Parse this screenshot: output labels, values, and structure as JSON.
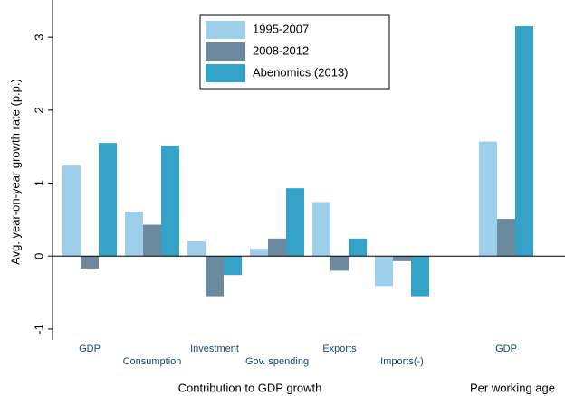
{
  "chart_data": {
    "type": "bar",
    "ylabel": "Avg. year-on-year growth rate (p.p.)",
    "xlabel": "Contribution to GDP growth",
    "xlabel2": "Per working age",
    "categories": [
      "GDP",
      "Consumption",
      "Investment",
      "Gov. spending",
      "Exports",
      "Imports(-)",
      "GDP"
    ],
    "series": [
      {
        "name": "1995-2007",
        "color": "#9ecfea",
        "values": [
          1.24,
          0.61,
          0.2,
          0.1,
          0.74,
          -0.41,
          1.57
        ]
      },
      {
        "name": "2008-2012",
        "color": "#6b8aa0",
        "values": [
          -0.17,
          0.43,
          -0.55,
          0.24,
          -0.2,
          -0.07,
          0.51
        ]
      },
      {
        "name": "Abenomics (2013)",
        "color": "#35a3c8",
        "values": [
          1.55,
          1.51,
          -0.26,
          0.93,
          0.24,
          -0.55,
          3.15
        ]
      }
    ],
    "ylim": [
      -1.15,
      3.51
    ],
    "yticks": [
      -1,
      0,
      1,
      2,
      3
    ],
    "legend": "top"
  }
}
